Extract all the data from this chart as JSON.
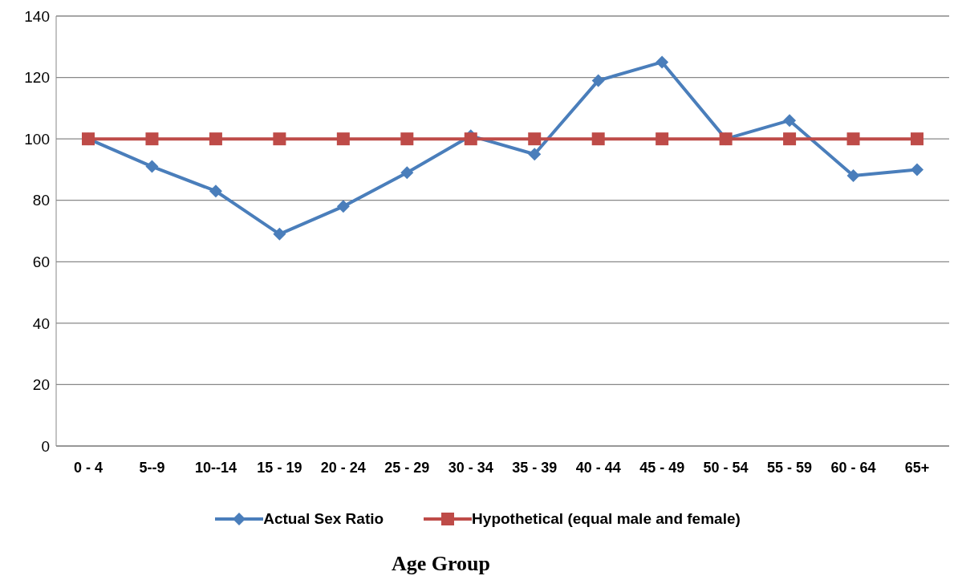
{
  "chart_data": {
    "type": "line",
    "xlabel": "Age Group",
    "categories": [
      "0 - 4",
      "5--9",
      "10--14",
      "15 - 19",
      "20 - 24",
      "25 - 29",
      "30 - 34",
      "35 - 39",
      "40 - 44",
      "45 - 49",
      "50 - 54",
      "55 - 59",
      "60 - 64",
      "65+"
    ],
    "series": [
      {
        "name": "Actual Sex Ratio",
        "color": "#4a7ebb",
        "marker": "diamond",
        "values": [
          100,
          91,
          83,
          69,
          78,
          89,
          101,
          95,
          119,
          125,
          100,
          106,
          88,
          90
        ]
      },
      {
        "name": "Hypothetical (equal male and female)",
        "color": "#be4b48",
        "marker": "square",
        "values": [
          100,
          100,
          100,
          100,
          100,
          100,
          100,
          100,
          100,
          100,
          100,
          100,
          100,
          100
        ]
      }
    ],
    "ylim": [
      0,
      140
    ],
    "yticks": [
      0,
      20,
      40,
      60,
      80,
      100,
      120,
      140
    ],
    "grid": "y",
    "legend": "bottom",
    "line_style": "solid"
  }
}
